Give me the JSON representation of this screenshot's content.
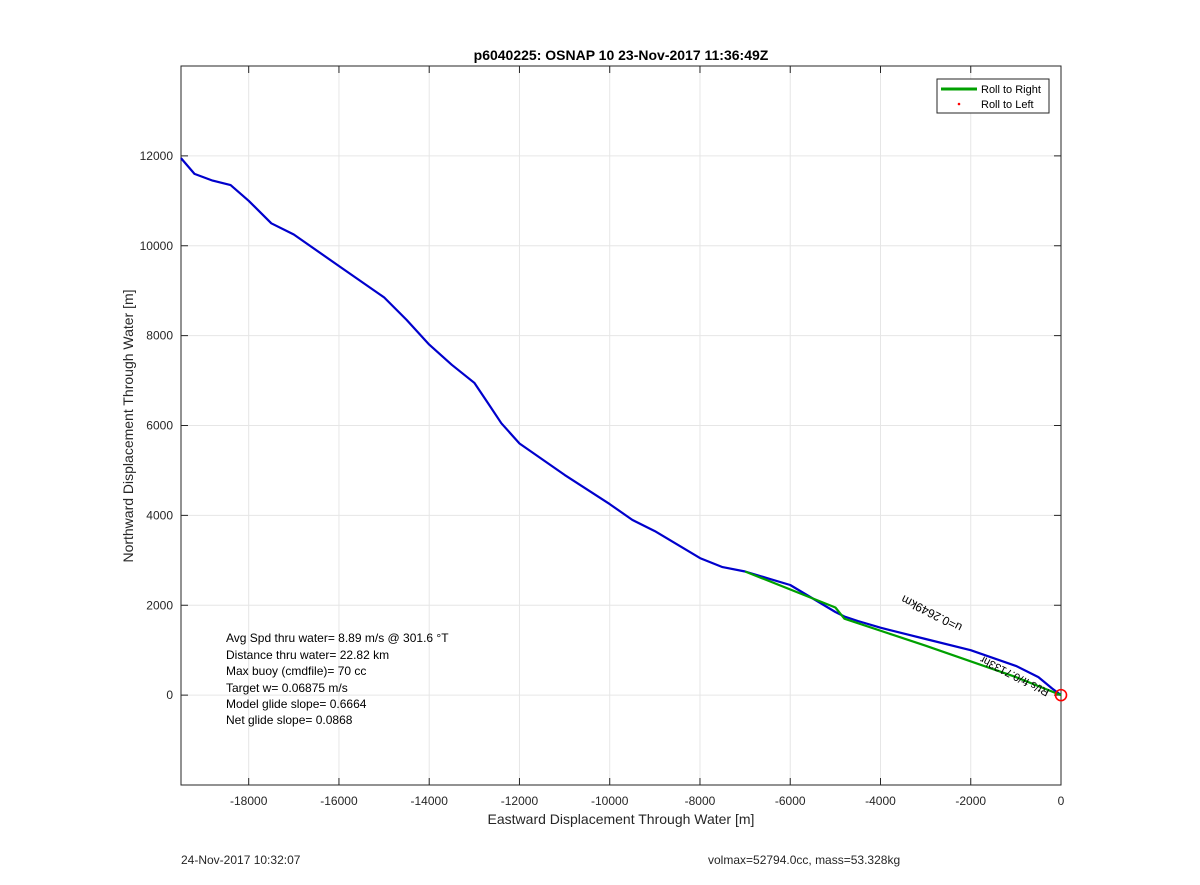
{
  "chart_data": {
    "type": "line",
    "title": "p6040225: OSNAP 10 23-Nov-2017 11:36:49Z",
    "xlabel": "Eastward Displacement Through Water [m]",
    "ylabel": "Northward Displacement Through Water [m]",
    "xlim": [
      -19500,
      0
    ],
    "ylim": [
      -2000,
      14000
    ],
    "xticks": [
      -18000,
      -16000,
      -14000,
      -12000,
      -10000,
      -8000,
      -6000,
      -4000,
      -2000,
      0
    ],
    "yticks": [
      0,
      2000,
      4000,
      6000,
      8000,
      10000,
      12000
    ],
    "grid": true,
    "legend_position": "top-right",
    "legend": [
      {
        "label": "Roll to Right",
        "color": "#00a000",
        "style": "line"
      },
      {
        "label": "Roll to Left",
        "color": "#ff0000",
        "style": "dot"
      }
    ],
    "series": [
      {
        "color": "#0000cc",
        "x": [
          -19500,
          -19200,
          -18800,
          -18400,
          -18000,
          -17500,
          -17000,
          -16000,
          -15000,
          -14500,
          -14000,
          -13500,
          -13000,
          -12700,
          -12400,
          -12000,
          -11000,
          -10000,
          -9500,
          -9000,
          -8000,
          -7500,
          -7000,
          -6500,
          -6000,
          -5500,
          -5000,
          -4800,
          -4500,
          -4000,
          -3000,
          -2000,
          -1000,
          -500,
          -200,
          0
        ],
        "y": [
          11950,
          11600,
          11450,
          11350,
          11000,
          10500,
          10250,
          9550,
          8850,
          8350,
          7800,
          7350,
          6950,
          6500,
          6050,
          5600,
          4900,
          4250,
          3900,
          3650,
          3050,
          2850,
          2750,
          2600,
          2450,
          2150,
          1850,
          1750,
          1650,
          1500,
          1250,
          1000,
          650,
          400,
          150,
          0
        ]
      },
      {
        "color": "#00a000",
        "x": [
          -7000,
          -5000,
          -4800,
          -3000,
          -1000,
          0
        ],
        "y": [
          2750,
          1950,
          1700,
          1100,
          400,
          0
        ]
      }
    ],
    "end_marker": {
      "x": 0,
      "y": 0,
      "color": "#ff0000"
    },
    "annotations": {
      "rotated_label": "u=0.2649km",
      "overlap_labels": [
        "Rt/s fr/0.7133hr"
      ],
      "stats": [
        "Avg Spd thru water=  8.89 m/s @ 301.6 °T",
        "Distance thru water= 22.82 km",
        "Max buoy (cmdfile)= 70 cc",
        "Target w= 0.06875 m/s",
        "Model glide slope= 0.6664",
        "Net glide slope= 0.0868"
      ]
    }
  },
  "footer": {
    "left": "24-Nov-2017 10:32:07",
    "right": "volmax=52794.0cc, mass=53.328kg"
  }
}
